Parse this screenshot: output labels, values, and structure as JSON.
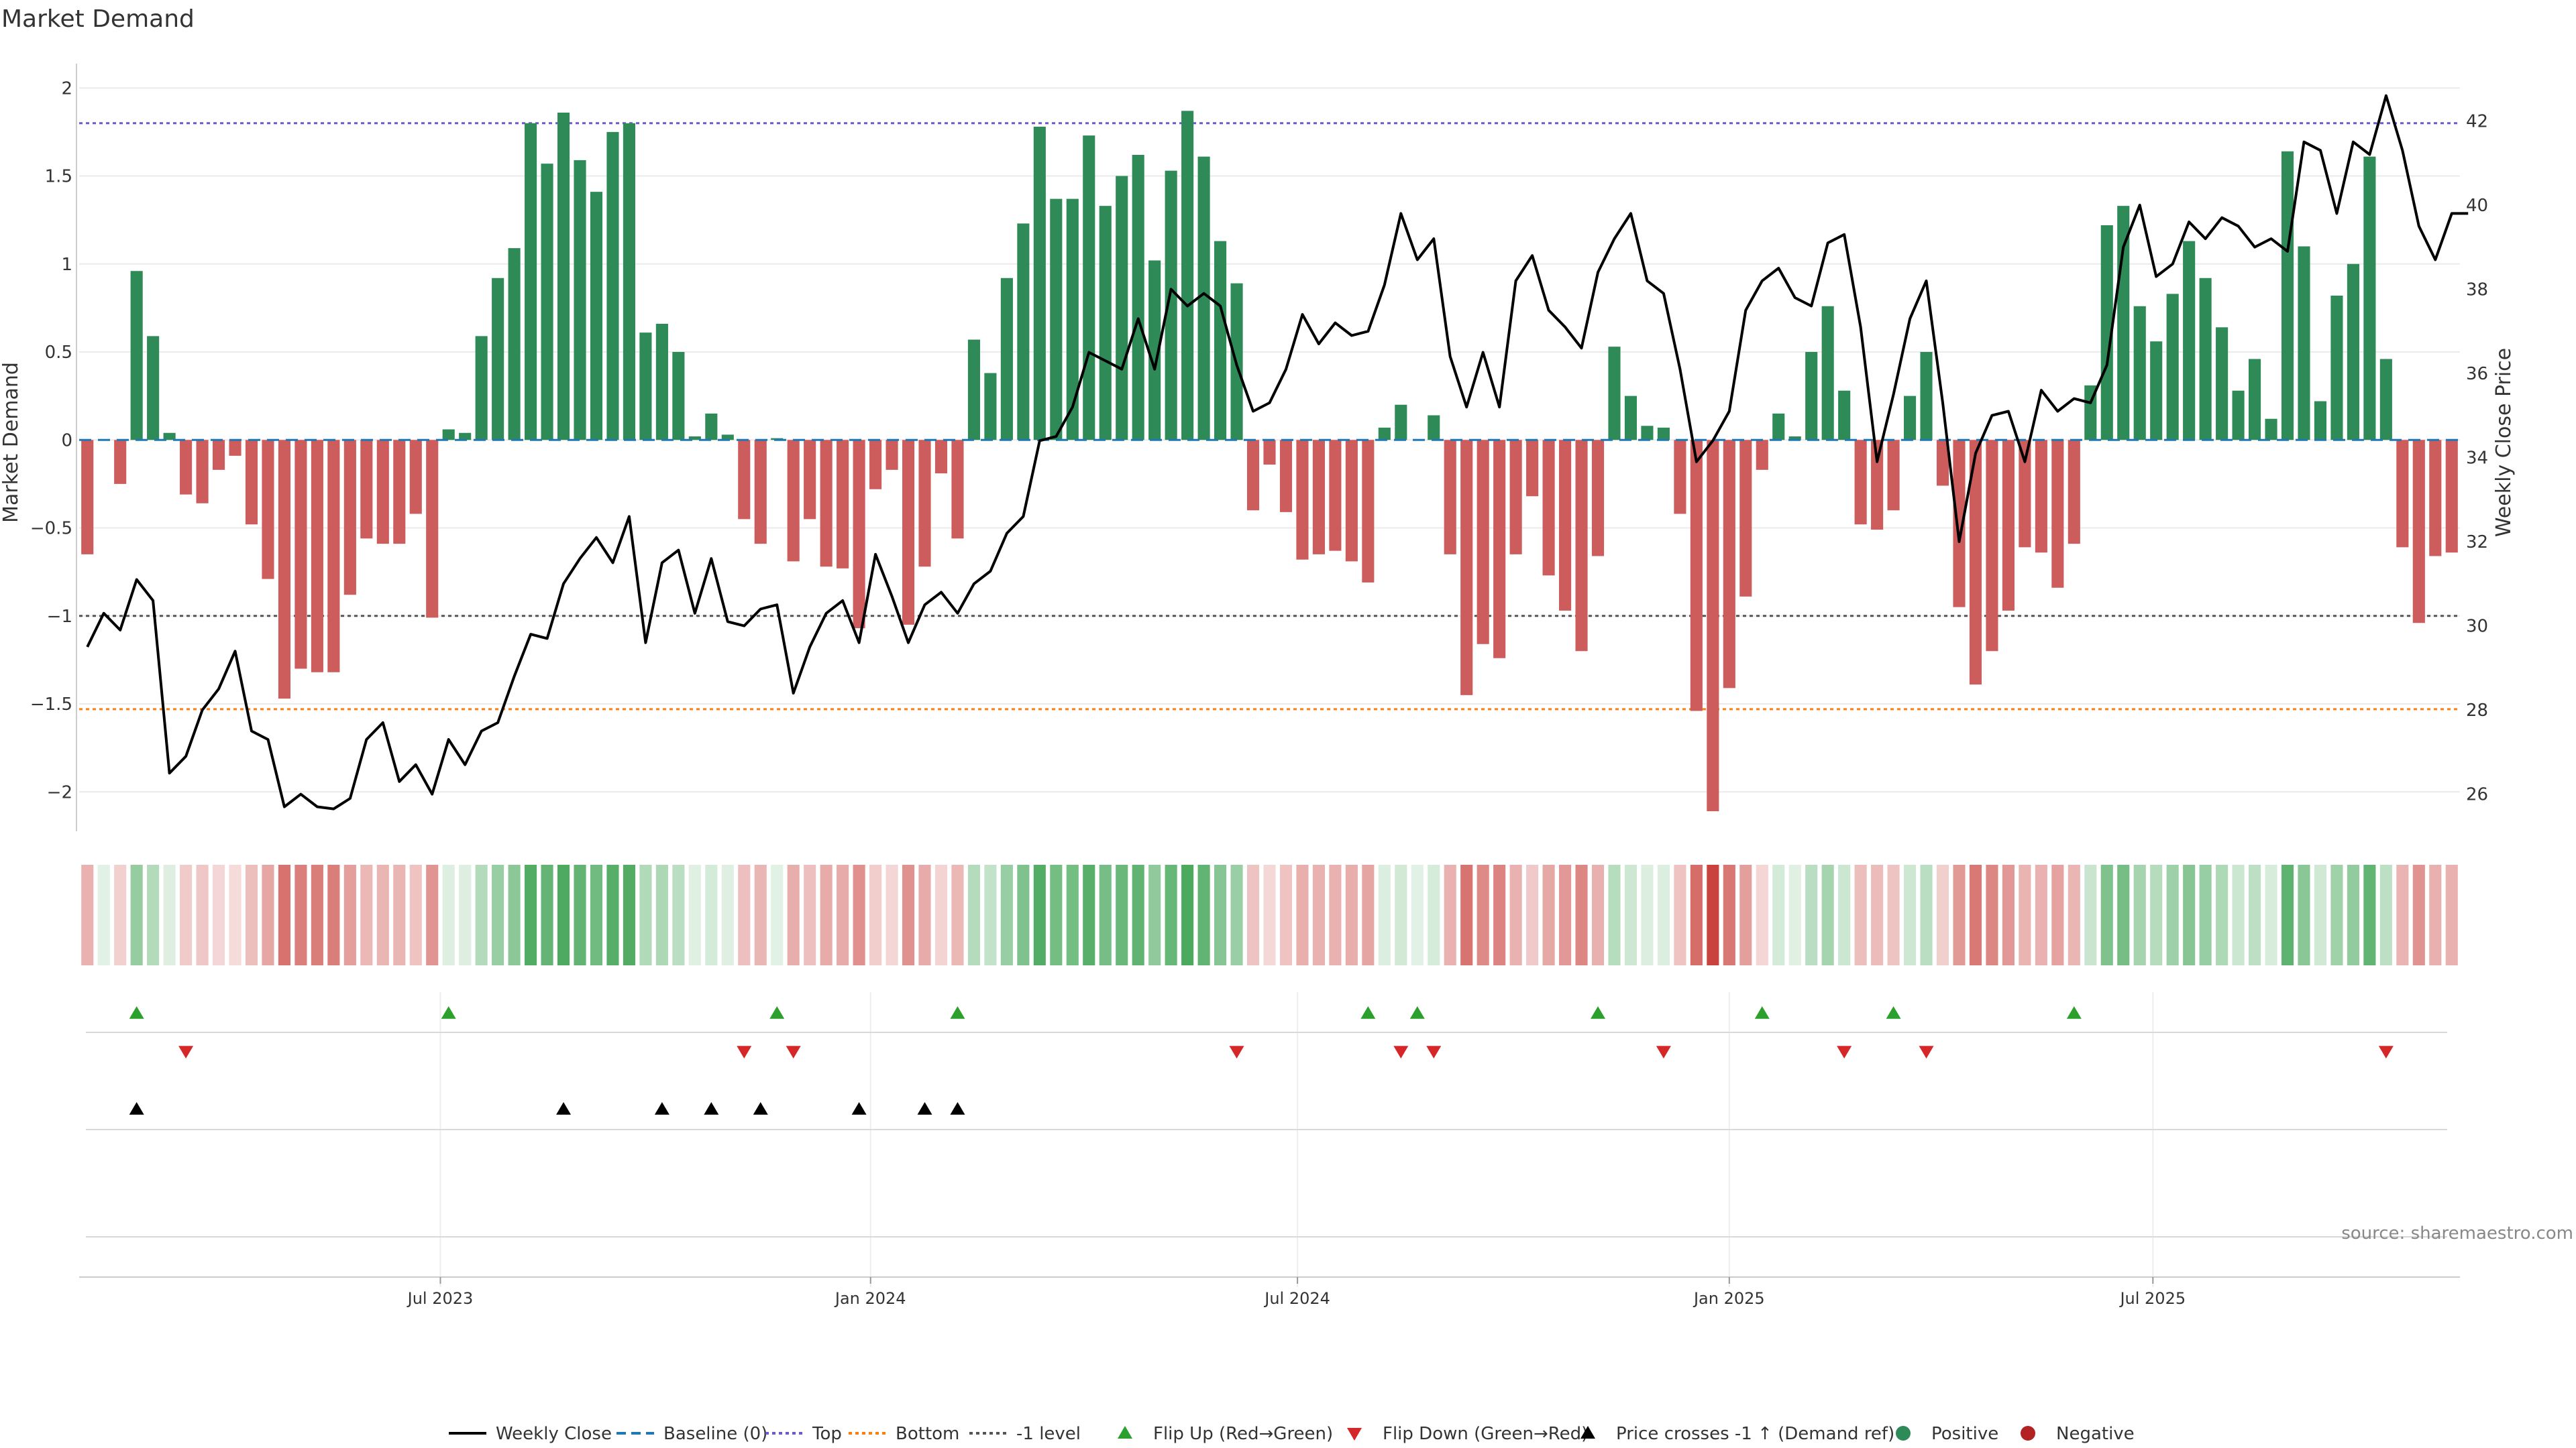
{
  "chart_data": {
    "type": "bar",
    "title": "Market Demand",
    "ylabel_left": "Market Demand",
    "ylabel_right": "Weekly Close Price",
    "ylim_left": [
      -2.3,
      2.1
    ],
    "ylim_right": [
      24.8,
      43.2
    ],
    "yticks_left": [
      2,
      1.5,
      1,
      0.5,
      0,
      -0.5,
      -1,
      -1.5,
      -2
    ],
    "ytick_labels_left": [
      "2",
      "1.5",
      "1",
      "0.5",
      "0",
      "−0.5",
      "−1",
      "−1.5",
      "−2"
    ],
    "yticks_right": [
      42,
      40,
      38,
      36,
      34,
      32,
      30,
      28,
      26
    ],
    "ytick_labels_right": [
      "42",
      "40",
      "38",
      "36",
      "34",
      "32",
      "30",
      "28",
      "26"
    ],
    "x_tick_labels": [
      "Jul 2023",
      "Jan 2024",
      "Jul 2024",
      "Jan 2025",
      "Jul 2025"
    ],
    "x_tick_weeks": [
      21.5,
      47.7,
      73.7,
      100,
      125.8
    ],
    "reference_lines": {
      "top": 1.8,
      "bottom": -1.53,
      "minus_one": -1.0,
      "baseline": 0
    },
    "demand": [
      -0.65,
      0,
      -0.25,
      0.96,
      0.59,
      0.04,
      -0.31,
      -0.36,
      -0.17,
      -0.09,
      -0.48,
      -0.79,
      -1.47,
      -1.3,
      -1.32,
      -1.32,
      -0.88,
      -0.56,
      -0.59,
      -0.59,
      -0.42,
      -1.01,
      0.06,
      0.04,
      0.59,
      0.92,
      1.09,
      1.8,
      1.57,
      1.86,
      1.59,
      1.41,
      1.75,
      1.8,
      0.61,
      0.66,
      0.5,
      0.02,
      0.15,
      0.03,
      -0.45,
      -0.59,
      0.01,
      -0.69,
      -0.45,
      -0.72,
      -0.73,
      -1.07,
      -0.28,
      -0.17,
      -1.05,
      -0.72,
      -0.19,
      -0.56,
      0.57,
      0.38,
      0.92,
      1.23,
      1.78,
      1.37,
      1.37,
      1.73,
      1.33,
      1.5,
      1.62,
      1.02,
      1.53,
      1.87,
      1.61,
      1.13,
      0.89,
      -0.4,
      -0.14,
      -0.41,
      -0.68,
      -0.65,
      -0.63,
      -0.69,
      -0.81,
      0.07,
      0.2,
      0,
      0.14,
      -0.65,
      -1.45,
      -1.16,
      -1.24,
      -0.65,
      -0.32,
      -0.77,
      -0.97,
      -1.2,
      -0.66,
      0.53,
      0.25,
      0.08,
      0.07,
      -0.42,
      -1.54,
      -2.11,
      -1.41,
      -0.89,
      -0.17,
      0.15,
      0.02,
      0.5,
      0.76,
      0.28,
      -0.48,
      -0.51,
      -0.4,
      0.25,
      0.5,
      -0.26,
      -0.95,
      -1.39,
      -1.2,
      -0.97,
      -0.61,
      -0.64,
      -0.84,
      -0.59,
      0.31,
      1.22,
      1.33,
      0.76,
      0.56,
      0.83,
      1.13,
      0.92,
      0.64,
      0.28,
      0.46,
      0.12,
      1.64,
      1.1,
      0.22,
      0.82,
      1.0,
      1.61,
      0.46,
      -0.61,
      -1.04,
      -0.66,
      -0.64
    ],
    "weekly_close": [
      29.5,
      30.3,
      29.9,
      31.1,
      30.6,
      26.5,
      26.9,
      28.0,
      28.5,
      29.4,
      27.5,
      27.3,
      25.7,
      26.0,
      25.7,
      25.65,
      25.9,
      27.3,
      27.7,
      26.3,
      26.7,
      26.0,
      27.3,
      26.7,
      27.5,
      27.7,
      28.8,
      29.8,
      29.7,
      31.0,
      31.6,
      32.1,
      31.5,
      32.6,
      29.6,
      31.5,
      31.8,
      30.3,
      31.6,
      30.1,
      30.0,
      30.4,
      30.5,
      28.4,
      29.5,
      30.3,
      30.6,
      29.6,
      31.7,
      30.7,
      29.6,
      30.5,
      30.8,
      30.3,
      31.0,
      31.3,
      32.2,
      32.6,
      34.4,
      34.5,
      35.2,
      36.5,
      36.3,
      36.1,
      37.3,
      36.1,
      38.0,
      37.6,
      37.9,
      37.6,
      36.2,
      35.1,
      35.3,
      36.1,
      37.4,
      36.7,
      37.2,
      36.9,
      37.0,
      38.1,
      39.8,
      38.7,
      39.2,
      36.4,
      35.2,
      36.5,
      35.2,
      38.2,
      38.8,
      37.5,
      37.1,
      36.6,
      38.4,
      39.2,
      39.8,
      38.2,
      37.9,
      36.1,
      33.9,
      34.4,
      35.1,
      37.5,
      38.2,
      38.5,
      37.8,
      37.6,
      39.1,
      39.3,
      37.1,
      33.9,
      35.5,
      37.3,
      38.2,
      35.3,
      32.0,
      34.1,
      35.0,
      35.1,
      33.9,
      35.6,
      35.1,
      35.4,
      35.3,
      36.2,
      39.0,
      40.0,
      38.3,
      38.6,
      39.6,
      39.2,
      39.7,
      39.5,
      39.0,
      39.2,
      38.9,
      41.5,
      41.3,
      39.8,
      41.5,
      41.2,
      42.6,
      41.3,
      39.5,
      38.7,
      39.8,
      39.8
    ],
    "flip_up_weeks": [
      3,
      22,
      42,
      53,
      78,
      81,
      92,
      102,
      110,
      121
    ],
    "flip_down_weeks": [
      6,
      40,
      43,
      70,
      80,
      82,
      96,
      107,
      112,
      140
    ],
    "price_cross_weeks": [
      3,
      29,
      35,
      38,
      41,
      47,
      51,
      53
    ],
    "legend": [
      {
        "key": "weekly-close",
        "label": "Weekly Close",
        "color": "#000000"
      },
      {
        "key": "baseline",
        "label": "Baseline (0)",
        "color": "#1f77b4"
      },
      {
        "key": "top",
        "label": "Top",
        "color": "#6a5acd"
      },
      {
        "key": "bottom",
        "label": "Bottom",
        "color": "#ff7f0e"
      },
      {
        "key": "minus-one",
        "label": "-1 level",
        "color": "#555555"
      },
      {
        "key": "flip-up",
        "label": "Flip Up (Red→Green)",
        "color": "#2ca02c"
      },
      {
        "key": "flip-down",
        "label": "Flip Down (Green→Red)",
        "color": "#d62728"
      },
      {
        "key": "price-cross",
        "label": "Price crosses -1 ↑ (Demand ref)",
        "color": "#000000"
      },
      {
        "key": "positive",
        "label": "Positive",
        "color": "#2e8b57"
      },
      {
        "key": "negative",
        "label": "Negative",
        "color": "#b22222"
      }
    ],
    "colors": {
      "positive": "#2e8b57",
      "negative": "#cd5c5c",
      "price": "#000000",
      "grid": "#ebebeb"
    }
  },
  "source": "source: sharemaestro.com"
}
